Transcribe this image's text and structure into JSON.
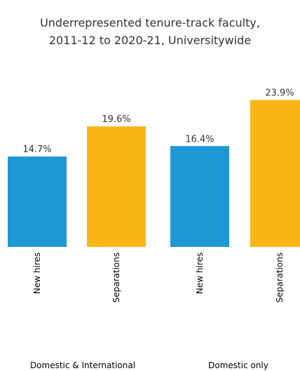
{
  "chart_data": {
    "type": "bar",
    "title_lines": [
      "Underrepresented tenure-track faculty,",
      "2011-12 to 2020-21, Universitywide"
    ],
    "groups": [
      {
        "name": "Domestic & International",
        "bars": [
          {
            "category": "New hires",
            "value": 14.7,
            "label": "14.7%",
            "color": "#1f97d4"
          },
          {
            "category": "Separations",
            "value": 19.6,
            "label": "19.6%",
            "color": "#fbb516"
          }
        ]
      },
      {
        "name": "Domestic only",
        "bars": [
          {
            "category": "New hires",
            "value": 16.4,
            "label": "16.4%",
            "color": "#1f97d4"
          },
          {
            "category": "Separations",
            "value": 23.9,
            "label": "23.9%",
            "color": "#fbb516"
          }
        ]
      }
    ],
    "ylim": [
      0,
      25.1
    ],
    "grid": false,
    "colors": {
      "new_hires": "#1f97d4",
      "separations": "#fbb516"
    }
  }
}
